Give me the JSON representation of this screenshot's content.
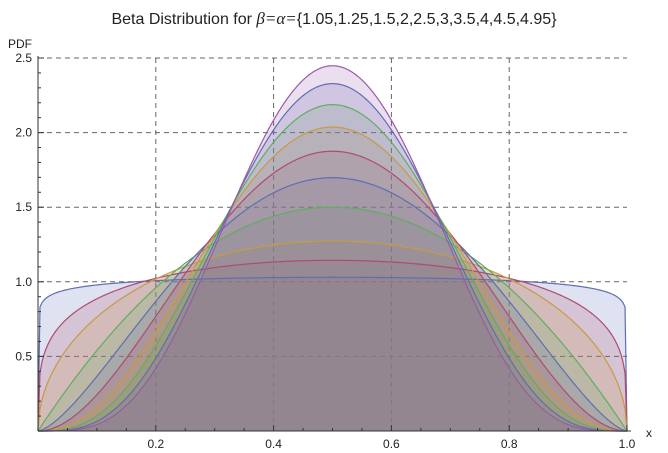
{
  "chart_data": {
    "type": "area",
    "title": {
      "prefix": "Beta Distribution for ",
      "symbols": "β=α=",
      "values": "{1.05,1.25,1.5,2,2.5,3,3.5,4,4.5,4.95}"
    },
    "xlabel": "x",
    "ylabel": "PDF",
    "xlim": [
      0,
      1
    ],
    "ylim": [
      0,
      2.5
    ],
    "x_ticks": [
      0.2,
      0.4,
      0.6,
      0.8,
      1.0
    ],
    "x_tick_labels": [
      "0.2",
      "0.4",
      "0.6",
      "0.8",
      "1.0"
    ],
    "y_ticks": [
      0.5,
      1.0,
      1.5,
      2.0,
      2.5
    ],
    "y_tick_labels": [
      "0.5",
      "1.0",
      "1.5",
      "2.0",
      "2.5"
    ],
    "grid": true,
    "series": [
      {
        "alpha": 1.05,
        "beta": 1.05,
        "mode_pdf": 1.03,
        "color": "#5e6eb2"
      },
      {
        "alpha": 1.25,
        "beta": 1.25,
        "mode_pdf": 1.13,
        "color": "#b04a6e"
      },
      {
        "alpha": 1.5,
        "beta": 1.5,
        "mode_pdf": 1.27,
        "color": "#c89a40"
      },
      {
        "alpha": 2,
        "beta": 2,
        "mode_pdf": 1.5,
        "color": "#5eae5e"
      },
      {
        "alpha": 2.5,
        "beta": 2.5,
        "mode_pdf": 1.7,
        "color": "#5e6eb2"
      },
      {
        "alpha": 3,
        "beta": 3,
        "mode_pdf": 1.875,
        "color": "#b04a6e"
      },
      {
        "alpha": 3.5,
        "beta": 3.5,
        "mode_pdf": 2.03,
        "color": "#c89a40"
      },
      {
        "alpha": 4,
        "beta": 4,
        "mode_pdf": 2.19,
        "color": "#5eae5e"
      },
      {
        "alpha": 4.5,
        "beta": 4.5,
        "mode_pdf": 2.33,
        "color": "#5e6eb2"
      },
      {
        "alpha": 4.95,
        "beta": 4.95,
        "mode_pdf": 2.45,
        "color": "#9a5aa8"
      }
    ]
  }
}
